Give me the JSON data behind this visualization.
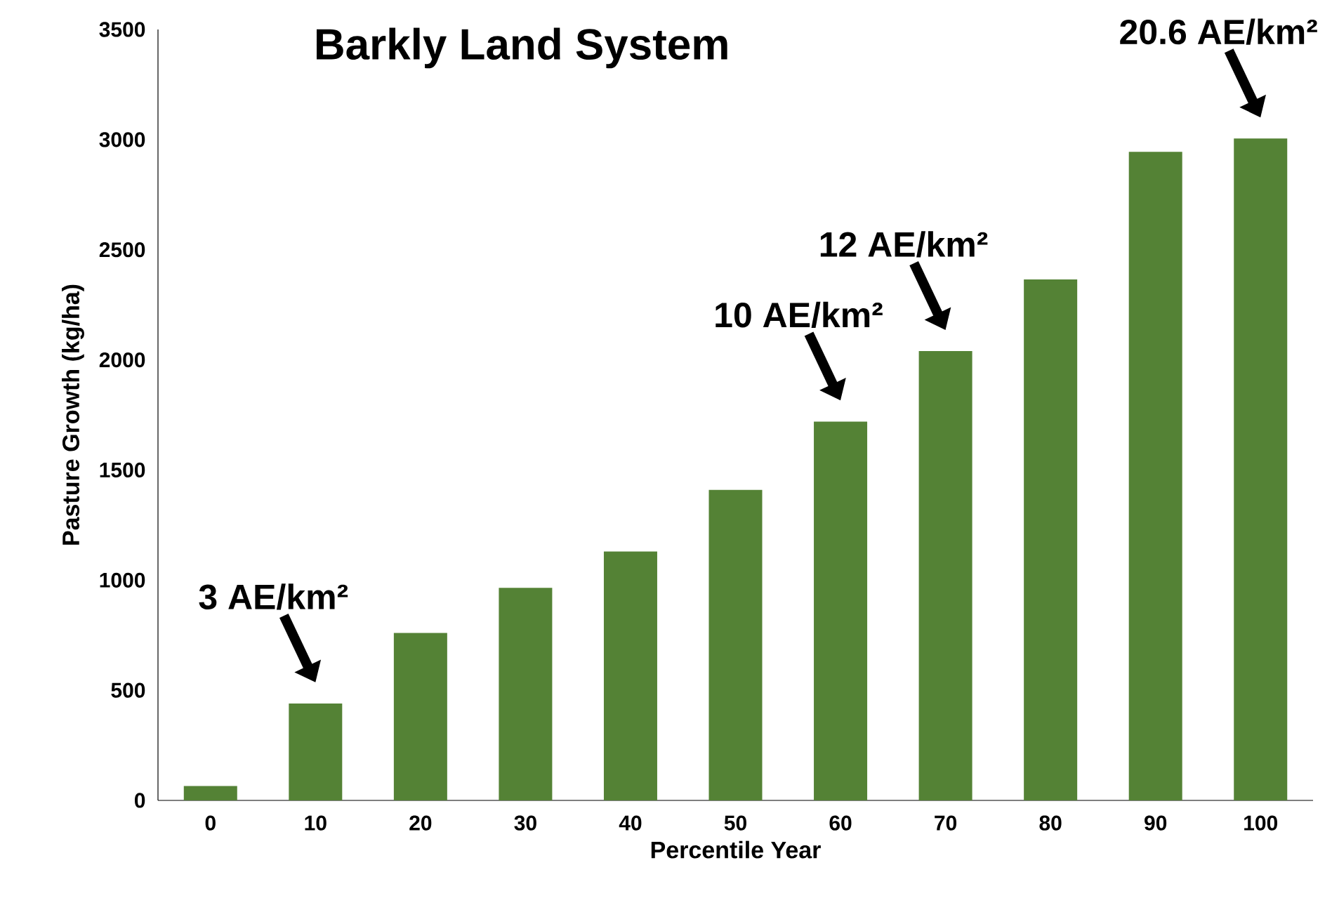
{
  "chart_data": {
    "type": "bar",
    "title": "Barkly Land System",
    "xlabel": "Percentile Year",
    "ylabel": "Pasture Growth (kg/ha)",
    "categories": [
      "0",
      "10",
      "20",
      "30",
      "40",
      "50",
      "60",
      "70",
      "80",
      "90",
      "100"
    ],
    "values": [
      65,
      440,
      760,
      965,
      1130,
      1410,
      1720,
      2040,
      2365,
      2945,
      3005
    ],
    "color": "#548235",
    "ylim": [
      0,
      3500
    ],
    "yticks": [
      0,
      500,
      1000,
      1500,
      2000,
      2500,
      3000,
      3500
    ],
    "annotations": [
      {
        "text": "3 AE/km²",
        "x": "10",
        "y": 440
      },
      {
        "text": "10 AE/km²",
        "x": "60",
        "y": 1720
      },
      {
        "text": "12 AE/km²",
        "x": "70",
        "y": 2040
      },
      {
        "text": "20.6 AE/km²",
        "x": "100",
        "y": 3005
      }
    ]
  }
}
